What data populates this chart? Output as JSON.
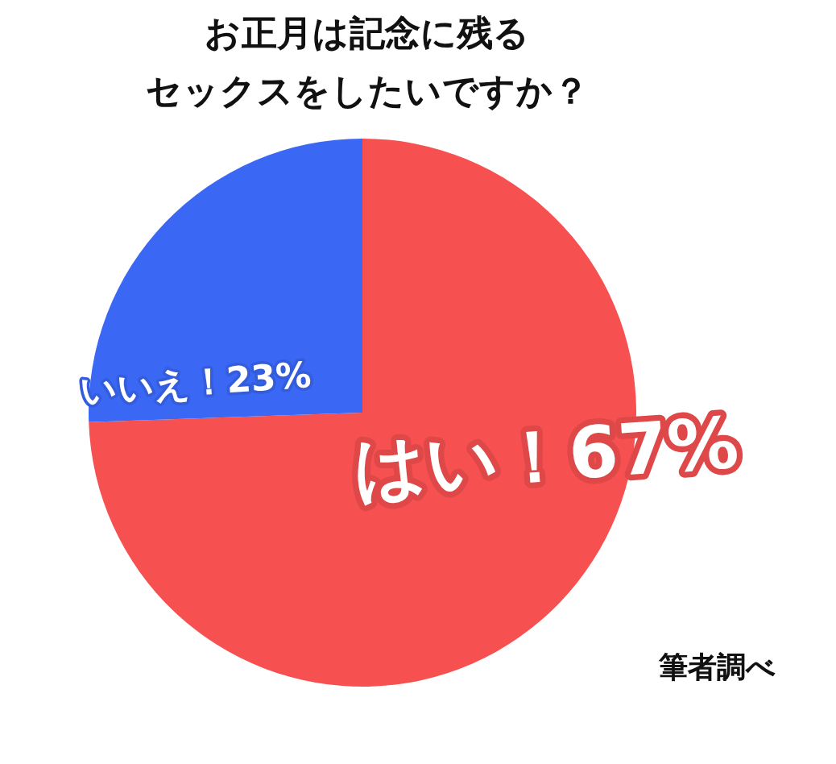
{
  "chart_data": {
    "type": "pie",
    "title": "お正月は記念に残るセックスをしたいですか？",
    "categories": [
      "はい！",
      "いいえ！"
    ],
    "values": [
      67,
      23
    ],
    "colors": [
      "#f75050",
      "#3a68f5"
    ],
    "value_labels": [
      "67%",
      "23%"
    ],
    "annotations": [
      "筆者調べ"
    ]
  }
}
